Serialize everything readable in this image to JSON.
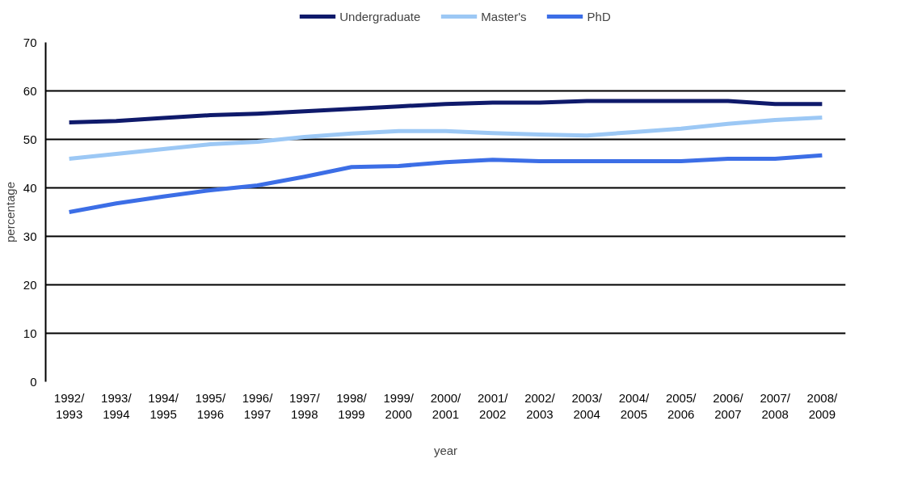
{
  "chart_data": {
    "type": "line",
    "xlabel": "year",
    "ylabel": "percentage",
    "categories": [
      "1992/\n1993",
      "1993/\n1994",
      "1994/\n1995",
      "1995/\n1996",
      "1996/\n1997",
      "1997/\n1998",
      "1998/\n1999",
      "1999/\n2000",
      "2000/\n2001",
      "2001/\n2002",
      "2002/\n2003",
      "2003/\n2004",
      "2004/\n2005",
      "2005/\n2006",
      "2006/\n2007",
      "2007/\n2008",
      "2008/\n2009"
    ],
    "series": [
      {
        "name": "Undergraduate",
        "color": "#0f1a6b",
        "values": [
          53.5,
          53.8,
          54.4,
          55,
          55.3,
          55.8,
          56.3,
          56.8,
          57.3,
          57.6,
          57.6,
          57.9,
          57.9,
          57.9,
          57.9,
          57.3,
          57.3
        ]
      },
      {
        "name": "Master's",
        "color": "#9cc8f5",
        "values": [
          46,
          47,
          48,
          49,
          49.5,
          50.5,
          51.2,
          51.7,
          51.7,
          51.3,
          51,
          50.8,
          51.5,
          52.2,
          53.2,
          54,
          54.5
        ]
      },
      {
        "name": "PhD",
        "color": "#3c6ee6",
        "values": [
          35,
          36.8,
          38.2,
          39.5,
          40.5,
          42.3,
          44.3,
          44.5,
          45.3,
          45.8,
          45.5,
          45.5,
          45.5,
          45.5,
          46,
          46,
          46.7
        ]
      }
    ],
    "ylim": [
      0,
      70
    ],
    "yticks": [
      0,
      10,
      20,
      30,
      40,
      50,
      60,
      70
    ],
    "grid": "y",
    "legend": "top",
    "marker": "none",
    "line_style": "solid"
  }
}
